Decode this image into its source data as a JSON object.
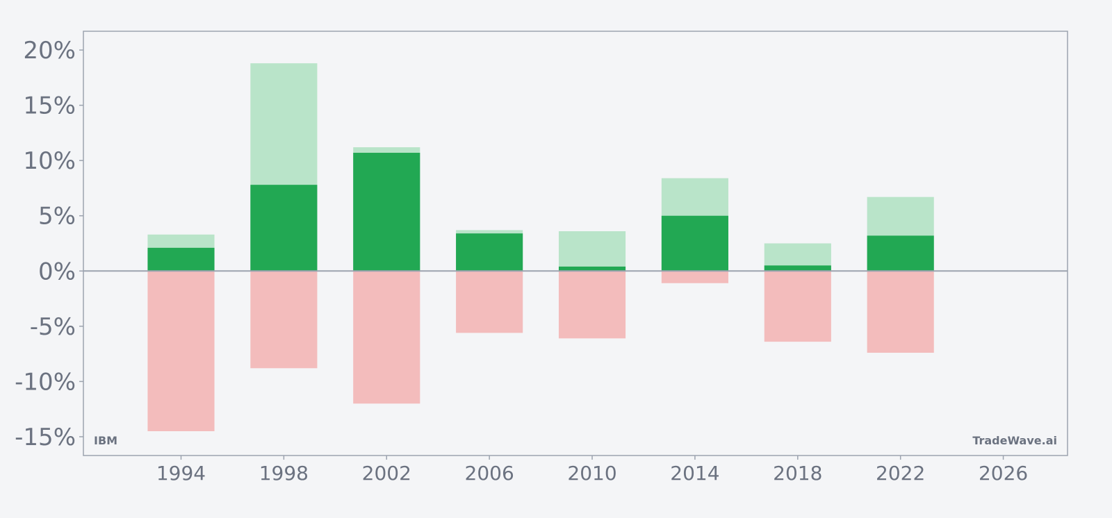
{
  "chart_data": {
    "type": "bar",
    "title": "",
    "xlabel": "",
    "ylabel": "",
    "ylim": [
      -16.7,
      21.7
    ],
    "xlim": [
      1990.2,
      2028.5
    ],
    "x": [
      1994,
      1998,
      2002,
      2006,
      2010,
      2014,
      2018,
      2022
    ],
    "series": [
      {
        "values": [
          3.3,
          18.8,
          11.2,
          3.7,
          3.6,
          8.4,
          2.5,
          6.7
        ]
      },
      {
        "values": [
          2.1,
          7.8,
          10.7,
          3.4,
          0.4,
          5.0,
          0.5,
          3.2
        ]
      },
      {
        "values": [
          -14.5,
          -8.8,
          -12.0,
          -5.6,
          -6.1,
          -1.1,
          -6.4,
          -7.4
        ]
      }
    ],
    "x_ticks": [
      "1994",
      "1998",
      "2002",
      "2006",
      "2010",
      "2014",
      "2018",
      "2022",
      "2026"
    ],
    "y_ticks": [
      "20%",
      "15%",
      "10%",
      "5%",
      "0%",
      "-5%",
      "-10%",
      "-15%"
    ],
    "legend": "none",
    "grid": false,
    "colors": {
      "high": "#b9e4c9",
      "close": "#22a853",
      "low": "#f3bcbc",
      "axis": "#9ca3af",
      "zero_line": "#9ca3af",
      "text": "#6b7280",
      "background": "#f4f5f7"
    }
  },
  "watermark": {
    "ticker": "IBM",
    "brand": "TradeWave.ai"
  }
}
